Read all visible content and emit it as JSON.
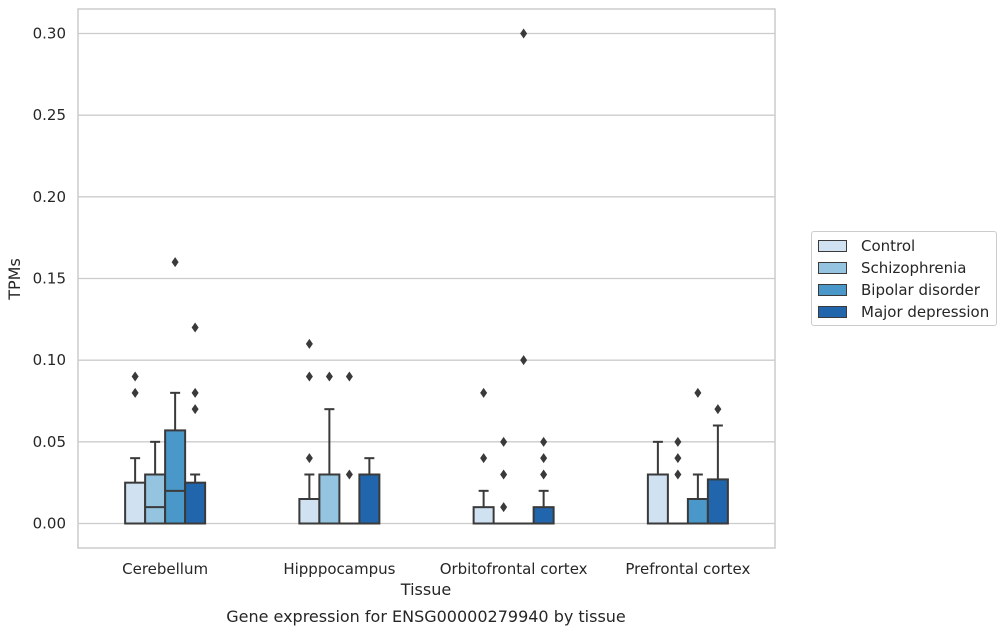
{
  "chart_data": {
    "type": "box",
    "caption": "Gene expression for ENSG00000279940 by tissue",
    "xlabel": "Tissue",
    "ylabel": "TPMs",
    "ylim": [
      -0.015,
      0.315
    ],
    "yticks": [
      0.0,
      0.05,
      0.1,
      0.15,
      0.2,
      0.25,
      0.3
    ],
    "ytick_labels": [
      "0.00",
      "0.05",
      "0.10",
      "0.15",
      "0.20",
      "0.25",
      "0.30"
    ],
    "grid": "horizontal",
    "legend_position": "right",
    "categories": [
      "Cerebellum",
      "Hipppocampus",
      "Orbitofrontal cortex",
      "Prefrontal cortex"
    ],
    "series": [
      {
        "name": "Control",
        "color": "#d0e1f2",
        "boxes": [
          {
            "q1": 0.0,
            "median": 0.0,
            "q3": 0.025,
            "whisker_low": 0.0,
            "whisker_high": 0.04,
            "outliers": [
              0.08,
              0.09
            ]
          },
          {
            "q1": 0.0,
            "median": 0.0,
            "q3": 0.015,
            "whisker_low": 0.0,
            "whisker_high": 0.03,
            "outliers": [
              0.04,
              0.09,
              0.11
            ]
          },
          {
            "q1": 0.0,
            "median": 0.0,
            "q3": 0.01,
            "whisker_low": 0.0,
            "whisker_high": 0.02,
            "outliers": [
              0.04,
              0.08
            ]
          },
          {
            "q1": 0.0,
            "median": 0.0,
            "q3": 0.03,
            "whisker_low": 0.0,
            "whisker_high": 0.05,
            "outliers": []
          }
        ]
      },
      {
        "name": "Schizophrenia",
        "color": "#94c4df",
        "boxes": [
          {
            "q1": 0.0,
            "median": 0.01,
            "q3": 0.03,
            "whisker_low": 0.0,
            "whisker_high": 0.05,
            "outliers": []
          },
          {
            "q1": 0.0,
            "median": 0.0,
            "q3": 0.03,
            "whisker_low": 0.0,
            "whisker_high": 0.07,
            "outliers": [
              0.09
            ]
          },
          {
            "q1": 0.0,
            "median": 0.0,
            "q3": 0.0,
            "whisker_low": 0.0,
            "whisker_high": 0.0,
            "outliers": [
              0.01,
              0.03,
              0.05
            ]
          },
          {
            "q1": 0.0,
            "median": 0.0,
            "q3": 0.0,
            "whisker_low": 0.0,
            "whisker_high": 0.0,
            "outliers": [
              0.03,
              0.04,
              0.05
            ]
          }
        ]
      },
      {
        "name": "Bipolar disorder",
        "color": "#4a98c9",
        "boxes": [
          {
            "q1": 0.0,
            "median": 0.02,
            "q3": 0.057,
            "whisker_low": 0.0,
            "whisker_high": 0.08,
            "outliers": [
              0.16
            ]
          },
          {
            "q1": 0.0,
            "median": 0.0,
            "q3": 0.0,
            "whisker_low": 0.0,
            "whisker_high": 0.0,
            "outliers": [
              0.03,
              0.09
            ]
          },
          {
            "q1": 0.0,
            "median": 0.0,
            "q3": 0.0,
            "whisker_low": 0.0,
            "whisker_high": 0.0,
            "outliers": [
              0.1,
              0.3
            ]
          },
          {
            "q1": 0.0,
            "median": 0.0,
            "q3": 0.015,
            "whisker_low": 0.0,
            "whisker_high": 0.03,
            "outliers": [
              0.08
            ]
          }
        ]
      },
      {
        "name": "Major depression",
        "color": "#2166ac",
        "boxes": [
          {
            "q1": 0.0,
            "median": 0.0,
            "q3": 0.025,
            "whisker_low": 0.0,
            "whisker_high": 0.03,
            "outliers": [
              0.07,
              0.08,
              0.12
            ]
          },
          {
            "q1": 0.0,
            "median": 0.0,
            "q3": 0.03,
            "whisker_low": 0.0,
            "whisker_high": 0.04,
            "outliers": []
          },
          {
            "q1": 0.0,
            "median": 0.0,
            "q3": 0.01,
            "whisker_low": 0.0,
            "whisker_high": 0.02,
            "outliers": [
              0.03,
              0.04,
              0.05
            ]
          },
          {
            "q1": 0.0,
            "median": 0.0,
            "q3": 0.027,
            "whisker_low": 0.0,
            "whisker_high": 0.06,
            "outliers": [
              0.07
            ]
          }
        ]
      }
    ]
  }
}
